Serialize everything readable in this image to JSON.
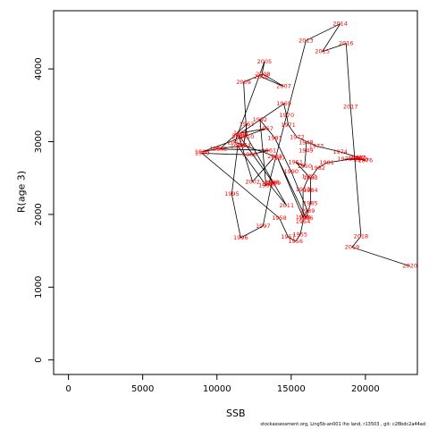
{
  "chart_data": {
    "type": "line",
    "xlabel": "SSB",
    "ylabel": "R(age 3)",
    "xlim": [
      -1000,
      23500
    ],
    "ylim": [
      -200,
      4800
    ],
    "x_ticks": [
      0,
      5000,
      10000,
      15000,
      20000
    ],
    "y_ticks": [
      0,
      1000,
      2000,
      3000,
      4000
    ],
    "grid": false,
    "line_color": "#000000",
    "label_color": "#ff0000",
    "points": [
      {
        "year": 1959,
        "x": 9000,
        "y": 2840
      },
      {
        "year": 1960,
        "x": 12200,
        "y": 2820
      },
      {
        "year": 1961,
        "x": 13500,
        "y": 2880
      },
      {
        "year": 1962,
        "x": 10200,
        "y": 2900
      },
      {
        "year": 1963,
        "x": 12000,
        "y": 3240
      },
      {
        "year": 1964,
        "x": 11800,
        "y": 2950
      },
      {
        "year": 1965,
        "x": 10000,
        "y": 2900
      },
      {
        "year": 1966,
        "x": 9000,
        "y": 2860
      },
      {
        "year": 1967,
        "x": 13300,
        "y": 3180
      },
      {
        "year": 1968,
        "x": 11600,
        "y": 3120
      },
      {
        "year": 1969,
        "x": 14500,
        "y": 3520
      },
      {
        "year": 1970,
        "x": 14700,
        "y": 3360
      },
      {
        "year": 1971,
        "x": 14800,
        "y": 3230
      },
      {
        "year": 1972,
        "x": 15400,
        "y": 3060
      },
      {
        "year": 1973,
        "x": 16700,
        "y": 2940
      },
      {
        "year": 1974,
        "x": 18300,
        "y": 2860
      },
      {
        "year": 1975,
        "x": 19600,
        "y": 2780
      },
      {
        "year": 1976,
        "x": 20000,
        "y": 2740
      },
      {
        "year": 1977,
        "x": 19500,
        "y": 2770
      },
      {
        "year": 1978,
        "x": 18600,
        "y": 2760
      },
      {
        "year": 1979,
        "x": 19700,
        "y": 2750
      },
      {
        "year": 1980,
        "x": 19300,
        "y": 2770
      },
      {
        "year": 1981,
        "x": 17400,
        "y": 2710
      },
      {
        "year": 1982,
        "x": 16800,
        "y": 2640
      },
      {
        "year": 1983,
        "x": 16300,
        "y": 2500
      },
      {
        "year": 1984,
        "x": 16300,
        "y": 2330
      },
      {
        "year": 1985,
        "x": 16300,
        "y": 2150
      },
      {
        "year": 1986,
        "x": 16000,
        "y": 1950
      },
      {
        "year": 1987,
        "x": 14100,
        "y": 2770
      },
      {
        "year": 1988,
        "x": 15800,
        "y": 1960
      },
      {
        "year": 1989,
        "x": 16100,
        "y": 2050
      },
      {
        "year": 1990,
        "x": 15000,
        "y": 2590
      },
      {
        "year": 1991,
        "x": 13900,
        "y": 3050
      },
      {
        "year": 1992,
        "x": 12900,
        "y": 3300
      },
      {
        "year": 1993,
        "x": 13300,
        "y": 2400
      },
      {
        "year": 1994,
        "x": 11400,
        "y": 2940
      },
      {
        "year": 1995,
        "x": 11000,
        "y": 2280
      },
      {
        "year": 1996,
        "x": 11600,
        "y": 1680
      },
      {
        "year": 1997,
        "x": 13100,
        "y": 1840
      },
      {
        "year": 1998,
        "x": 13700,
        "y": 2440
      },
      {
        "year": 1999,
        "x": 13800,
        "y": 2430
      },
      {
        "year": 2000,
        "x": 11500,
        "y": 3080
      },
      {
        "year": 2001,
        "x": 11500,
        "y": 3060
      },
      {
        "year": 2002,
        "x": 12400,
        "y": 2450
      },
      {
        "year": 2003,
        "x": 13900,
        "y": 2800
      },
      {
        "year": 2004,
        "x": 11200,
        "y": 2990
      },
      {
        "year": 2005,
        "x": 13200,
        "y": 4100
      },
      {
        "year": 2006,
        "x": 13000,
        "y": 3890
      },
      {
        "year": 2007,
        "x": 14500,
        "y": 3760
      },
      {
        "year": 2008,
        "x": 13100,
        "y": 3930
      },
      {
        "year": 2009,
        "x": 11800,
        "y": 3820
      },
      {
        "year": 2010,
        "x": 12000,
        "y": 3070
      },
      {
        "year": 2011,
        "x": 14700,
        "y": 2120
      },
      {
        "year": 2012,
        "x": 13500,
        "y": 2420
      },
      {
        "year": 2013,
        "x": 16000,
        "y": 4390
      },
      {
        "year": 2014,
        "x": 18300,
        "y": 4620
      },
      {
        "year": 2015,
        "x": 17100,
        "y": 4240
      },
      {
        "year": 2016,
        "x": 18700,
        "y": 4350
      },
      {
        "year": 2017,
        "x": 19000,
        "y": 3480
      },
      {
        "year": 2018,
        "x": 19700,
        "y": 1700
      },
      {
        "year": 2019,
        "x": 19100,
        "y": 1550
      },
      {
        "year": 2020,
        "x": 23000,
        "y": 1290
      },
      {
        "year": 1948,
        "x": 16000,
        "y": 2990
      },
      {
        "year": 1949,
        "x": 16000,
        "y": 2880
      },
      {
        "year": 1950,
        "x": 15900,
        "y": 2660
      },
      {
        "year": 1951,
        "x": 15300,
        "y": 2720
      },
      {
        "year": 1952,
        "x": 16200,
        "y": 2520
      },
      {
        "year": 1953,
        "x": 15800,
        "y": 2340
      },
      {
        "year": 1954,
        "x": 15800,
        "y": 1900
      },
      {
        "year": 1955,
        "x": 15600,
        "y": 1720
      },
      {
        "year": 1956,
        "x": 15300,
        "y": 1630
      },
      {
        "year": 1957,
        "x": 14800,
        "y": 1690
      },
      {
        "year": 1958,
        "x": 14200,
        "y": 1950
      }
    ],
    "path_order": [
      1948,
      1949,
      1950,
      1951,
      1952,
      1953,
      1954,
      1955,
      1956,
      1957,
      1958,
      1959,
      1960,
      1961,
      1962,
      1963,
      1964,
      1965,
      1966,
      1967,
      1968,
      1969,
      1970,
      1971,
      1972,
      1973,
      1974,
      1975,
      1976,
      1977,
      1978,
      1979,
      1980,
      1981,
      1982,
      1983,
      1984,
      1985,
      1986,
      1987,
      1988,
      1989,
      1990,
      1991,
      1992,
      1993,
      1994,
      1995,
      1996,
      1997,
      1998,
      1999,
      2000,
      2001,
      2002,
      2003,
      2004,
      2005,
      2006,
      2007,
      2008,
      2009,
      2010,
      2011,
      2012,
      2013,
      2014,
      2015,
      2016,
      2017,
      2018,
      2019,
      2020
    ]
  },
  "footer": "stockassessment.org, Ling5b-an001 lho land, r13503 , git: c28bdc2a44ad"
}
